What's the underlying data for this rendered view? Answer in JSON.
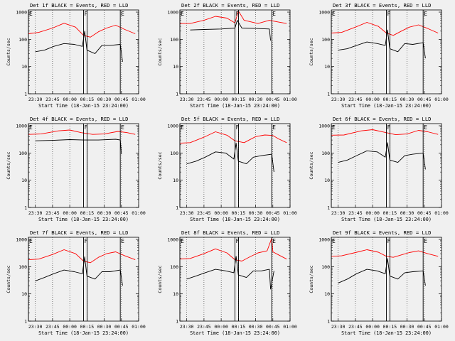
{
  "chart_data": [
    {
      "type": "line",
      "title": "Det 1f BLACK = Events, RED = LLD",
      "ylabel": "Counts/sec",
      "xlabel": "Start Time (18-Jan-15 23:24:00)",
      "x_ticks": [
        "23:30",
        "23:45",
        "00:00",
        "00:15",
        "00:30",
        "00:45",
        "01:00"
      ],
      "y_ticks": [
        "1",
        "10",
        "100",
        "1000"
      ],
      "y_scale": "log",
      "ylim": [
        1,
        1200
      ],
      "markers": [
        {
          "label": "E",
          "time": "23:24"
        },
        {
          "label": "F",
          "time": "00:12"
        },
        {
          "label": "E",
          "time": "00:44"
        }
      ],
      "series": [
        {
          "name": "RED",
          "color": "#ff0000",
          "x": [
            "23:24",
            "23:33",
            "23:45",
            "23:55",
            "00:05",
            "00:12",
            "00:18",
            "00:25",
            "00:32",
            "00:40",
            "00:48",
            "00:57"
          ],
          "values": [
            160,
            180,
            260,
            390,
            280,
            140,
            120,
            190,
            260,
            330,
            230,
            160
          ]
        },
        {
          "name": "BLACK",
          "color": "#000000",
          "x": [
            "23:30",
            "23:38",
            "23:46",
            "23:55",
            "00:04",
            "00:11",
            "00:13",
            "00:15",
            "00:22",
            "00:28",
            "00:35",
            "00:44",
            "00:46"
          ],
          "values": [
            35,
            40,
            55,
            70,
            65,
            55,
            200,
            40,
            30,
            60,
            60,
            65,
            15
          ]
        }
      ]
    },
    {
      "type": "line",
      "title": "Det 2f BLACK = Events, RED = LLD",
      "ylabel": "Counts/sec",
      "xlabel": "Start Time (18-Jan-15 23:24:00)",
      "x_ticks": [
        "23:30",
        "23:45",
        "00:00",
        "00:15",
        "00:30",
        "00:45",
        "01:00"
      ],
      "y_ticks": [
        "1",
        "10",
        "100",
        "1000"
      ],
      "y_scale": "log",
      "ylim": [
        1,
        1200
      ],
      "markers": [
        {
          "label": "E",
          "time": "23:24"
        },
        {
          "label": "F",
          "time": "00:12"
        },
        {
          "label": "E",
          "time": "00:44"
        }
      ],
      "series": [
        {
          "name": "RED",
          "color": "#ff0000",
          "x": [
            "23:24",
            "23:33",
            "23:45",
            "23:55",
            "00:05",
            "00:12",
            "00:15",
            "00:20",
            "00:32",
            "00:42",
            "00:50",
            "00:57"
          ],
          "values": [
            380,
            380,
            500,
            700,
            600,
            400,
            1100,
            500,
            380,
            500,
            430,
            380
          ]
        },
        {
          "name": "BLACK",
          "color": "#000000",
          "x": [
            "23:33",
            "23:45",
            "00:00",
            "00:12",
            "00:14",
            "00:18",
            "00:30",
            "00:42",
            "00:43"
          ],
          "values": [
            220,
            230,
            240,
            260,
            500,
            260,
            250,
            240,
            90
          ]
        }
      ]
    },
    {
      "type": "line",
      "title": "Det 3f BLACK = Events, RED = LLD",
      "ylabel": "Counts/sec",
      "xlabel": "Start Time (18-Jan-15 23:24:00)",
      "x_ticks": [
        "23:30",
        "23:45",
        "00:00",
        "00:15",
        "00:30",
        "00:45",
        "01:00"
      ],
      "y_ticks": [
        "1",
        "10",
        "100",
        "1000"
      ],
      "y_scale": "log",
      "ylim": [
        1,
        1200
      ],
      "markers": [
        {
          "label": "E",
          "time": "23:24"
        },
        {
          "label": "F",
          "time": "00:12"
        },
        {
          "label": "E",
          "time": "00:44"
        }
      ],
      "series": [
        {
          "name": "RED",
          "color": "#ff0000",
          "x": [
            "23:24",
            "23:33",
            "23:45",
            "23:55",
            "00:05",
            "00:12",
            "00:18",
            "00:25",
            "00:32",
            "00:40",
            "00:48",
            "00:57"
          ],
          "values": [
            170,
            180,
            280,
            420,
            300,
            170,
            140,
            200,
            280,
            340,
            250,
            170
          ]
        },
        {
          "name": "BLACK",
          "color": "#000000",
          "x": [
            "23:30",
            "23:38",
            "23:46",
            "23:55",
            "00:04",
            "00:11",
            "00:13",
            "00:15",
            "00:22",
            "00:28",
            "00:35",
            "00:44",
            "00:46"
          ],
          "values": [
            40,
            45,
            60,
            80,
            70,
            60,
            220,
            45,
            35,
            70,
            65,
            75,
            20
          ]
        }
      ]
    },
    {
      "type": "line",
      "title": "Det 4f BLACK = Events, RED = LLD",
      "ylabel": "Counts/sec",
      "xlabel": "Start Time (18-Jan-15 23:24:00)",
      "x_ticks": [
        "23:30",
        "23:45",
        "00:00",
        "00:15",
        "00:30",
        "00:45",
        "01:00"
      ],
      "y_ticks": [
        "1",
        "10",
        "100",
        "1000"
      ],
      "y_scale": "log",
      "ylim": [
        1,
        1200
      ],
      "markers": [
        {
          "label": "E",
          "time": "23:24"
        },
        {
          "label": "F",
          "time": "00:12"
        },
        {
          "label": "E",
          "time": "00:44"
        }
      ],
      "series": [
        {
          "name": "RED",
          "color": "#ff0000",
          "x": [
            "23:24",
            "23:35",
            "23:50",
            "00:00",
            "00:10",
            "00:20",
            "00:30",
            "00:42",
            "00:50",
            "00:57"
          ],
          "values": [
            480,
            500,
            650,
            700,
            560,
            480,
            500,
            620,
            560,
            480
          ]
        },
        {
          "name": "BLACK",
          "color": "#000000",
          "x": [
            "23:30",
            "23:45",
            "00:00",
            "00:12",
            "00:25",
            "00:40",
            "00:44",
            "00:45"
          ],
          "values": [
            280,
            290,
            310,
            300,
            300,
            320,
            300,
            90
          ]
        }
      ]
    },
    {
      "type": "line",
      "title": "Det 5f BLACK = Events, RED = LLD",
      "ylabel": "Counts/sec",
      "xlabel": "Start Time (18-Jan-15 23:24:00)",
      "x_ticks": [
        "23:30",
        "23:45",
        "00:00",
        "00:15",
        "00:30",
        "00:45",
        "01:00"
      ],
      "y_ticks": [
        "1",
        "10",
        "100",
        "1000"
      ],
      "y_scale": "log",
      "ylim": [
        1,
        1200
      ],
      "markers": [
        {
          "label": "E",
          "time": "23:24"
        },
        {
          "label": "F",
          "time": "00:12"
        },
        {
          "label": "E",
          "time": "00:44"
        }
      ],
      "series": [
        {
          "name": "RED",
          "color": "#ff0000",
          "x": [
            "23:24",
            "23:33",
            "23:45",
            "23:55",
            "00:05",
            "00:12",
            "00:20",
            "00:30",
            "00:38",
            "00:45",
            "00:50",
            "00:57"
          ],
          "values": [
            230,
            240,
            380,
            600,
            450,
            280,
            240,
            400,
            460,
            440,
            330,
            240
          ]
        },
        {
          "name": "BLACK",
          "color": "#000000",
          "x": [
            "23:30",
            "23:38",
            "23:46",
            "23:55",
            "00:04",
            "00:11",
            "00:13",
            "00:15",
            "00:22",
            "00:28",
            "00:35",
            "00:44",
            "00:46"
          ],
          "values": [
            40,
            50,
            70,
            110,
            100,
            60,
            230,
            50,
            40,
            70,
            80,
            90,
            20
          ]
        }
      ]
    },
    {
      "type": "line",
      "title": "Det 6f BLACK = Events, RED = LLD",
      "ylabel": "Counts/sec",
      "xlabel": "Start Time (18-Jan-15 23:24:00)",
      "x_ticks": [
        "23:30",
        "23:45",
        "00:00",
        "00:15",
        "00:30",
        "00:45",
        "01:00"
      ],
      "y_ticks": [
        "1",
        "10",
        "100",
        "1000"
      ],
      "y_scale": "log",
      "ylim": [
        1,
        1200
      ],
      "markers": [
        {
          "label": "E",
          "time": "23:24"
        },
        {
          "label": "F",
          "time": "00:12"
        },
        {
          "label": "E",
          "time": "00:44"
        }
      ],
      "series": [
        {
          "name": "RED",
          "color": "#ff0000",
          "x": [
            "23:24",
            "23:35",
            "23:50",
            "00:00",
            "00:10",
            "00:20",
            "00:30",
            "00:40",
            "00:48",
            "00:57"
          ],
          "values": [
            450,
            460,
            650,
            720,
            580,
            470,
            500,
            680,
            600,
            480
          ]
        },
        {
          "name": "BLACK",
          "color": "#000000",
          "x": [
            "23:30",
            "23:38",
            "23:46",
            "23:55",
            "00:04",
            "00:11",
            "00:13",
            "00:15",
            "00:22",
            "00:28",
            "00:35",
            "00:44",
            "00:46"
          ],
          "values": [
            45,
            55,
            80,
            120,
            110,
            70,
            240,
            55,
            45,
            80,
            90,
            100,
            25
          ]
        }
      ]
    },
    {
      "type": "line",
      "title": "Det 7f BLACK = Events, RED = LLD",
      "ylabel": "Counts/sec",
      "xlabel": "Start Time (18-Jan-15 23:24:00)",
      "x_ticks": [
        "23:30",
        "23:45",
        "00:00",
        "00:15",
        "00:30",
        "00:45",
        "01:00"
      ],
      "y_ticks": [
        "1",
        "10",
        "100",
        "1000"
      ],
      "y_scale": "log",
      "ylim": [
        1,
        1200
      ],
      "markers": [
        {
          "label": "E",
          "time": "23:24"
        },
        {
          "label": "F",
          "time": "00:12"
        },
        {
          "label": "E",
          "time": "00:44"
        }
      ],
      "series": [
        {
          "name": "RED",
          "color": "#ff0000",
          "x": [
            "23:24",
            "23:33",
            "23:45",
            "23:55",
            "00:05",
            "00:12",
            "00:18",
            "00:25",
            "00:32",
            "00:40",
            "00:48",
            "00:57"
          ],
          "values": [
            180,
            190,
            280,
            420,
            300,
            160,
            140,
            220,
            300,
            350,
            250,
            180
          ]
        },
        {
          "name": "BLACK",
          "color": "#000000",
          "x": [
            "23:30",
            "23:38",
            "23:46",
            "23:55",
            "00:04",
            "00:11",
            "00:13",
            "00:15",
            "00:22",
            "00:28",
            "00:35",
            "00:44",
            "00:46"
          ],
          "values": [
            30,
            40,
            55,
            75,
            65,
            55,
            230,
            45,
            35,
            65,
            65,
            75,
            20
          ]
        }
      ]
    },
    {
      "type": "line",
      "title": "Det 8f BLACK = Events, RED = LLD",
      "ylabel": "Counts/sec",
      "xlabel": "Start Time (18-Jan-15 23:24:00)",
      "x_ticks": [
        "23:30",
        "23:45",
        "00:00",
        "00:15",
        "00:30",
        "00:45",
        "01:00"
      ],
      "y_ticks": [
        "1",
        "10",
        "100",
        "1000"
      ],
      "y_scale": "log",
      "ylim": [
        1,
        1200
      ],
      "markers": [
        {
          "label": "E",
          "time": "23:24"
        },
        {
          "label": "F",
          "time": "00:12"
        },
        {
          "label": "E",
          "time": "00:44"
        }
      ],
      "series": [
        {
          "name": "RED",
          "color": "#ff0000",
          "x": [
            "23:24",
            "23:33",
            "23:45",
            "23:55",
            "00:05",
            "00:12",
            "00:18",
            "00:25",
            "00:32",
            "00:40",
            "00:44",
            "00:45",
            "00:50",
            "00:57"
          ],
          "values": [
            190,
            200,
            300,
            450,
            320,
            180,
            160,
            230,
            320,
            380,
            1100,
            350,
            270,
            190
          ]
        },
        {
          "name": "BLACK",
          "color": "#000000",
          "x": [
            "23:30",
            "23:38",
            "23:46",
            "23:55",
            "00:04",
            "00:11",
            "00:13",
            "00:15",
            "00:22",
            "00:28",
            "00:35",
            "00:42",
            "00:43",
            "00:46"
          ],
          "values": [
            35,
            45,
            60,
            80,
            70,
            60,
            240,
            50,
            40,
            70,
            70,
            80,
            15,
            70
          ]
        }
      ]
    },
    {
      "type": "line",
      "title": "Det 9f BLACK = Events, RED = LLD",
      "ylabel": "Counts/sec",
      "xlabel": "Start Time (18-Jan-15 23:24:00)",
      "x_ticks": [
        "23:30",
        "23:45",
        "00:00",
        "00:15",
        "00:30",
        "00:45",
        "01:00"
      ],
      "y_ticks": [
        "1",
        "10",
        "100",
        "1000"
      ],
      "y_scale": "log",
      "ylim": [
        1,
        1200
      ],
      "markers": [
        {
          "label": "E",
          "time": "23:24"
        },
        {
          "label": "F",
          "time": "00:12"
        },
        {
          "label": "E",
          "time": "00:44"
        }
      ],
      "series": [
        {
          "name": "RED",
          "color": "#ff0000",
          "x": [
            "23:24",
            "23:33",
            "23:45",
            "23:55",
            "00:05",
            "00:12",
            "00:18",
            "00:25",
            "00:32",
            "00:40",
            "00:48",
            "00:57"
          ],
          "values": [
            240,
            250,
            330,
            420,
            340,
            240,
            220,
            270,
            330,
            380,
            300,
            240
          ]
        },
        {
          "name": "BLACK",
          "color": "#000000",
          "x": [
            "23:30",
            "23:38",
            "23:46",
            "23:55",
            "00:04",
            "00:11",
            "00:13",
            "00:15",
            "00:22",
            "00:28",
            "00:35",
            "00:44",
            "00:46"
          ],
          "values": [
            25,
            35,
            55,
            80,
            70,
            55,
            200,
            45,
            35,
            60,
            65,
            70,
            20
          ]
        }
      ]
    }
  ]
}
